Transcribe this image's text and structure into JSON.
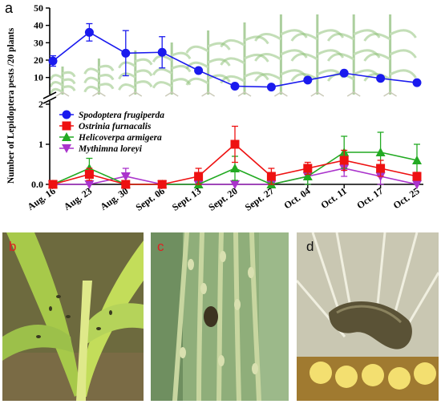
{
  "chart_data": {
    "type": "line",
    "panel_label": "a",
    "ylabel": "Number of Lepidoptera pests /20 plants",
    "x": [
      "Aug. 16",
      "Aug. 23",
      "Aug. 30",
      "Sept. 06",
      "Sept. 13",
      "Sept. 20",
      "Sept. 27",
      "Oct. 04",
      "Oct. 11",
      "Oct. 17",
      "Oct. 25"
    ],
    "axis_break": true,
    "upper_segment": {
      "ylim": [
        2,
        50
      ],
      "ticks": [
        10,
        20,
        30,
        40,
        50
      ]
    },
    "lower_segment": {
      "ylim": [
        0,
        2
      ],
      "ticks": [
        0.0,
        1,
        2
      ]
    },
    "legend_position": "center-left",
    "series": [
      {
        "name": "Spodoptera frugiperda",
        "color": "#1a1aee",
        "marker": "circle",
        "values": [
          19.5,
          36,
          24,
          24.5,
          14,
          5,
          4.5,
          8.5,
          12.5,
          9.5,
          7
        ],
        "errors": [
          3,
          5,
          13,
          9,
          0,
          0,
          0,
          0,
          0,
          0,
          0
        ]
      },
      {
        "name": "Ostrinia furnacalis",
        "color": "#ee1111",
        "marker": "square",
        "values": [
          0,
          0.25,
          0,
          0,
          0.2,
          1,
          0.2,
          0.4,
          0.6,
          0.4,
          0.2
        ],
        "errors": [
          0,
          0.15,
          0,
          0,
          0.2,
          0.45,
          0.2,
          0.15,
          0.25,
          0.2,
          0.1
        ]
      },
      {
        "name": "Helicoverpa armigera",
        "color": "#22aa22",
        "marker": "triangle-up",
        "values": [
          0,
          0.4,
          0,
          0,
          0,
          0.4,
          0,
          0.2,
          0.8,
          0.8,
          0.6
        ],
        "errors": [
          0,
          0.25,
          0,
          0,
          0,
          0.3,
          0,
          0.2,
          0.4,
          0.5,
          0.4
        ]
      },
      {
        "name": "Mythimna loreyi",
        "color": "#aa33cc",
        "marker": "triangle-down",
        "values": [
          0,
          0,
          0.2,
          0,
          0,
          0,
          0,
          0.2,
          0.4,
          0.2,
          0
        ],
        "errors": [
          0,
          0,
          0.2,
          0,
          0,
          0,
          0,
          0.2,
          0.2,
          0.2,
          0
        ]
      }
    ]
  },
  "photos": [
    {
      "label": "b",
      "subject": "damaged maize leaves"
    },
    {
      "label": "c",
      "subject": "maize tassel with larva"
    },
    {
      "label": "d",
      "subject": "larva in maize ear"
    }
  ]
}
